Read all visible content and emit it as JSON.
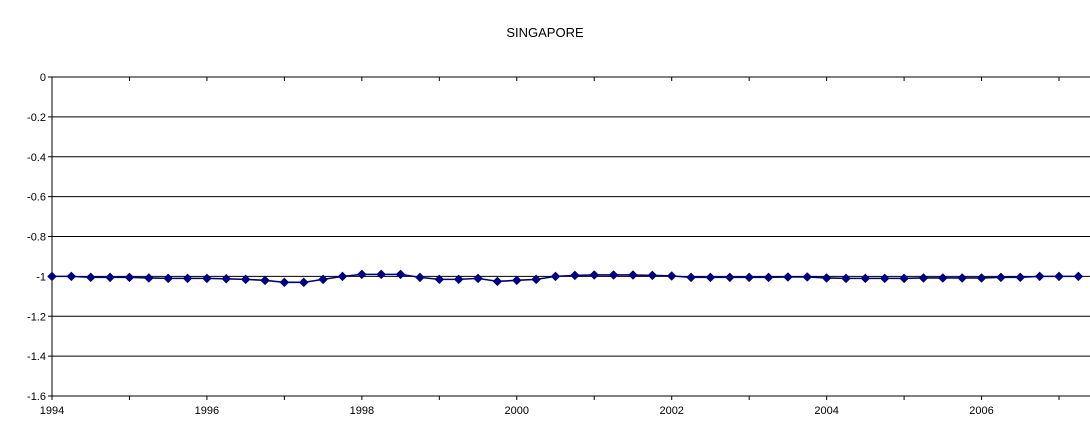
{
  "chart_data": {
    "type": "line",
    "title": "SINGAPORE",
    "xlabel": "",
    "ylabel": "",
    "xlim": [
      1994,
      2007.4
    ],
    "ylim": [
      -1.6,
      0
    ],
    "x_ticks": [
      1994,
      1996,
      1998,
      2000,
      2002,
      2004,
      2006
    ],
    "y_ticks": [
      0,
      -0.2,
      -0.4,
      -0.6,
      -0.8,
      -1,
      -1.2,
      -1.4,
      -1.6
    ],
    "grid": true,
    "legend": "none",
    "colors": {
      "line": "#000080",
      "marker": "#000080",
      "grid": "#000000",
      "axis": "#000000"
    },
    "series": [
      {
        "x": [
          1994.0,
          1994.25,
          1994.5,
          1994.75,
          1995.0,
          1995.25,
          1995.5,
          1995.75,
          1996.0,
          1996.25,
          1996.5,
          1996.75,
          1997.0,
          1997.25,
          1997.5,
          1997.75,
          1998.0,
          1998.25,
          1998.5,
          1998.75,
          1999.0,
          1999.25,
          1999.5,
          1999.75,
          2000.0,
          2000.25,
          2000.5,
          2000.75,
          2001.0,
          2001.25,
          2001.5,
          2001.75,
          2002.0,
          2002.25,
          2002.5,
          2002.75,
          2003.0,
          2003.25,
          2003.5,
          2003.75,
          2004.0,
          2004.25,
          2004.5,
          2004.75,
          2005.0,
          2005.25,
          2005.5,
          2005.75,
          2006.0,
          2006.25,
          2006.5,
          2006.75,
          2007.0,
          2007.25
        ],
        "values": [
          -1.0,
          -1.0,
          -1.005,
          -1.005,
          -1.005,
          -1.008,
          -1.01,
          -1.01,
          -1.01,
          -1.012,
          -1.015,
          -1.02,
          -1.03,
          -1.03,
          -1.015,
          -1.0,
          -0.99,
          -0.99,
          -0.99,
          -1.005,
          -1.015,
          -1.015,
          -1.01,
          -1.025,
          -1.02,
          -1.015,
          -1.0,
          -0.995,
          -0.993,
          -0.993,
          -0.993,
          -0.995,
          -0.998,
          -1.005,
          -1.005,
          -1.005,
          -1.005,
          -1.005,
          -1.003,
          -1.003,
          -1.008,
          -1.01,
          -1.01,
          -1.01,
          -1.01,
          -1.008,
          -1.008,
          -1.008,
          -1.008,
          -1.005,
          -1.005,
          -1.0,
          -1.0,
          -1.0
        ]
      }
    ]
  }
}
